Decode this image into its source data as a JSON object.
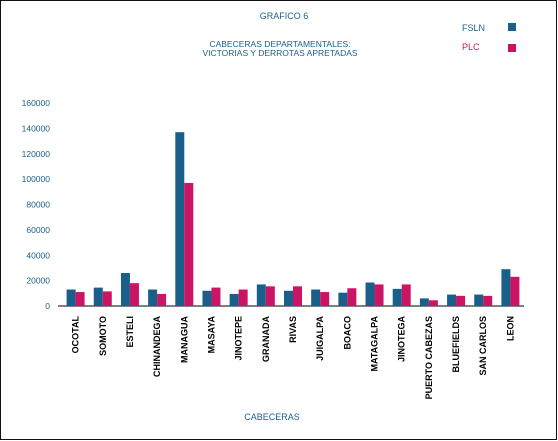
{
  "chart_data": {
    "type": "bar",
    "title": "GRAFICO 6",
    "subtitle": [
      "CABECERAS DEPARTAMENTALES:",
      "VICTORIAS Y DERROTAS APRETADAS"
    ],
    "xlabel": "CABECERAS",
    "ylabel": "",
    "ylim": [
      0,
      160000
    ],
    "yticks": [
      "0",
      "20000",
      "40000",
      "60000",
      "80000",
      "100000",
      "120000",
      "140000",
      "160000"
    ],
    "ytick_values": [
      0,
      20000,
      40000,
      60000,
      80000,
      100000,
      120000,
      140000,
      160000
    ],
    "grid": false,
    "legend_position": "top-right",
    "categories": [
      "OCOTAL",
      "SOMOTO",
      "ESTELI",
      "CHINANDEGA",
      "MANAGUA",
      "MASAYA",
      "JINOTEPE",
      "GRANADA",
      "RIVAS",
      "JUIGALPA",
      "BOACO",
      "MATAGALPA",
      "JINOTEGA",
      "PUERTO CABEZAS",
      "BLUEFIELDS",
      "SAN CARLOS",
      "LEON"
    ],
    "series": [
      {
        "name": "FSLN",
        "color": "#1a5f8a",
        "values": [
          13000,
          14500,
          26000,
          13000,
          137000,
          12000,
          9500,
          17000,
          12000,
          13000,
          10500,
          18500,
          13500,
          6000,
          9000,
          9000,
          29000
        ]
      },
      {
        "name": "PLC",
        "color": "#cc1464",
        "values": [
          11000,
          11500,
          18000,
          9500,
          97000,
          14500,
          13000,
          15500,
          15500,
          11000,
          14000,
          17000,
          17000,
          4500,
          8000,
          8000,
          23000
        ]
      }
    ]
  }
}
